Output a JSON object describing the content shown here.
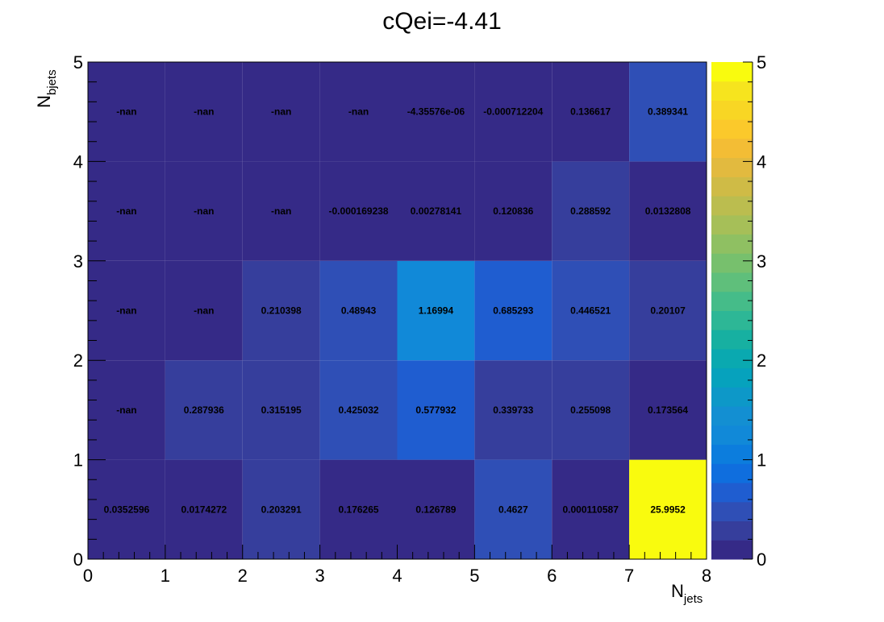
{
  "chart_data": {
    "type": "heatmap",
    "title": "cQei=-4.41",
    "xlabel": {
      "main": "N",
      "sub": "jets"
    },
    "ylabel": {
      "main": "N",
      "sub": "bjets"
    },
    "xlim": [
      0,
      8
    ],
    "ylim": [
      0,
      5
    ],
    "zlim": [
      0,
      5
    ],
    "x_ticks": [
      "0",
      "1",
      "2",
      "3",
      "4",
      "5",
      "6",
      "7",
      "8"
    ],
    "y_ticks": [
      "0",
      "1",
      "2",
      "3",
      "4",
      "5"
    ],
    "z_ticks": [
      "0",
      "1",
      "2",
      "3",
      "4",
      "5"
    ],
    "palette": [
      "#352a87",
      "#363e9c",
      "#2f4fb6",
      "#1f5dd0",
      "#0f6ede",
      "#0c7ddd",
      "#1189d8",
      "#138fd2",
      "#0d98c8",
      "#06a2bd",
      "#0aa9b0",
      "#17b0a1",
      "#2db796",
      "#45bc89",
      "#5fbf7b",
      "#77c06d",
      "#8fc062",
      "#a6bf58",
      "#bbbd4f",
      "#cfbb46",
      "#e2ba3f",
      "#f3bd35",
      "#fbc92b",
      "#f8d624",
      "#f6e41e",
      "#f9fb0e"
    ],
    "cells": [
      {
        "row": 0,
        "values": [
          0.0352596,
          0.0174272,
          0.203291,
          0.176265,
          0.126789,
          0.4627,
          0.000110587,
          25.9952
        ],
        "labels": [
          "0.0352596",
          "0.0174272",
          "0.203291",
          "0.176265",
          "0.126789",
          "0.4627",
          "0.000110587",
          "25.9952"
        ]
      },
      {
        "row": 1,
        "values": [
          null,
          0.287936,
          0.315195,
          0.425032,
          0.577932,
          0.339733,
          0.255098,
          0.173564
        ],
        "labels": [
          "-nan",
          "0.287936",
          "0.315195",
          "0.425032",
          "0.577932",
          "0.339733",
          "0.255098",
          "0.173564"
        ]
      },
      {
        "row": 2,
        "values": [
          null,
          null,
          0.210398,
          0.48943,
          1.16994,
          0.685293,
          0.446521,
          0.20107
        ],
        "labels": [
          "-nan",
          "-nan",
          "0.210398",
          "0.48943",
          "1.16994",
          "0.685293",
          "0.446521",
          "0.20107"
        ]
      },
      {
        "row": 3,
        "values": [
          null,
          null,
          null,
          -0.000169238,
          0.00278141,
          0.120836,
          0.288592,
          0.0132808
        ],
        "labels": [
          "-nan",
          "-nan",
          "-nan",
          "-0.000169238",
          "0.00278141",
          "0.120836",
          "0.288592",
          "0.0132808"
        ]
      },
      {
        "row": 4,
        "values": [
          null,
          null,
          null,
          null,
          -4.35576e-06,
          -0.000712204,
          0.136617,
          0.389341
        ],
        "labels": [
          "-nan",
          "-nan",
          "-nan",
          "-nan",
          "-4.35576e-06",
          "-0.000712204",
          "0.136617",
          "0.389341"
        ]
      }
    ]
  }
}
